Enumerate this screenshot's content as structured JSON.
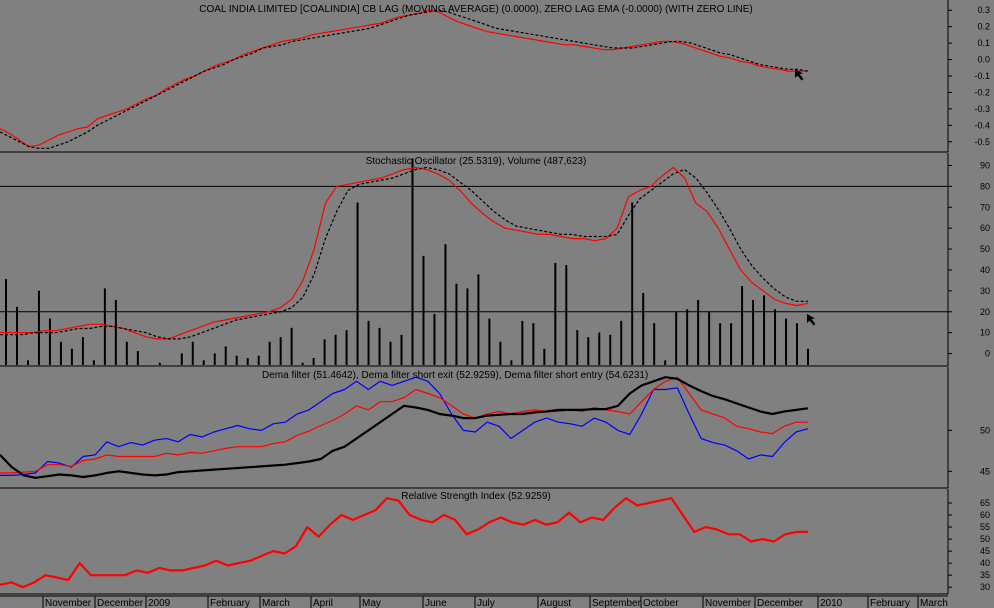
{
  "colors": {
    "background": "#808080",
    "red": "#ff0000",
    "blue": "#0000ff",
    "black": "#000000"
  },
  "xaxis": {
    "labels": [
      "November",
      "December",
      "2009",
      "February",
      "March",
      "April",
      "May",
      "June",
      "July",
      "August",
      "September",
      "October",
      "November",
      "December",
      "2010",
      "February",
      "March"
    ]
  },
  "chart_data": [
    {
      "type": "line",
      "title": "COAL INDIA LIMITED [COALINDIA] CB LAG (MOVING AVERAGE) (0.0000), ZERO LAG EMA (-0.0000) (WITH ZERO LINE)",
      "ylim": [
        -0.55,
        0.35
      ],
      "yticks": [
        "0.3",
        "0.2",
        "0.1",
        "0.0",
        "-0.1",
        "-0.2",
        "-0.3",
        "-0.4",
        "-0.5"
      ],
      "series": [
        {
          "color": "#ff0000",
          "values": [
            -0.42,
            -0.45,
            -0.49,
            -0.53,
            -0.52,
            -0.49,
            -0.46,
            -0.44,
            -0.42,
            -0.41,
            -0.36,
            -0.34,
            -0.32,
            -0.3,
            -0.27,
            -0.24,
            -0.22,
            -0.18,
            -0.15,
            -0.12,
            -0.1,
            -0.07,
            -0.04,
            -0.02,
            0.0,
            0.03,
            0.05,
            0.07,
            0.09,
            0.11,
            0.12,
            0.13,
            0.15,
            0.16,
            0.17,
            0.18,
            0.19,
            0.2,
            0.21,
            0.22,
            0.24,
            0.26,
            0.27,
            0.28,
            0.3,
            0.29,
            0.26,
            0.23,
            0.21,
            0.19,
            0.17,
            0.16,
            0.15,
            0.14,
            0.13,
            0.12,
            0.11,
            0.1,
            0.09,
            0.09,
            0.08,
            0.07,
            0.06,
            0.06,
            0.07,
            0.08,
            0.09,
            0.1,
            0.11,
            0.11,
            0.1,
            0.08,
            0.06,
            0.04,
            0.02,
            0.01,
            -0.01,
            -0.02,
            -0.04,
            -0.05,
            -0.06,
            -0.07,
            -0.07,
            -0.07
          ]
        },
        {
          "color": "#000000",
          "dash": true,
          "values": [
            -0.44,
            -0.47,
            -0.5,
            -0.53,
            -0.54,
            -0.54,
            -0.52,
            -0.5,
            -0.47,
            -0.44,
            -0.4,
            -0.37,
            -0.34,
            -0.31,
            -0.28,
            -0.25,
            -0.22,
            -0.19,
            -0.16,
            -0.13,
            -0.1,
            -0.07,
            -0.05,
            -0.03,
            0.0,
            0.02,
            0.04,
            0.07,
            0.08,
            0.09,
            0.11,
            0.12,
            0.13,
            0.14,
            0.15,
            0.16,
            0.17,
            0.18,
            0.19,
            0.21,
            0.23,
            0.25,
            0.27,
            0.28,
            0.29,
            0.3,
            0.29,
            0.27,
            0.25,
            0.23,
            0.21,
            0.19,
            0.18,
            0.17,
            0.16,
            0.15,
            0.14,
            0.13,
            0.12,
            0.11,
            0.1,
            0.09,
            0.08,
            0.07,
            0.07,
            0.07,
            0.08,
            0.09,
            0.1,
            0.11,
            0.11,
            0.1,
            0.08,
            0.06,
            0.04,
            0.03,
            0.01,
            -0.01,
            -0.03,
            -0.04,
            -0.05,
            -0.06,
            -0.06,
            -0.07
          ]
        }
      ]
    },
    {
      "type": "line",
      "title": "Stochastic Oscillator (25.5319), Volume (487,623)",
      "ylim": [
        -5,
        95
      ],
      "yticks": [
        "90",
        "80",
        "70",
        "60",
        "50",
        "40",
        "30",
        "20",
        "10",
        "0"
      ],
      "hlines": [
        80,
        20
      ],
      "series": [
        {
          "color": "#ff0000",
          "values": [
            10,
            10,
            10,
            10,
            11,
            11,
            12,
            13,
            14,
            14,
            13,
            12,
            10,
            8,
            7,
            7,
            9,
            11,
            13,
            15,
            16,
            17,
            18,
            19,
            20,
            22,
            26,
            35,
            50,
            72,
            80,
            81,
            82,
            83,
            84,
            86,
            88,
            89,
            88,
            86,
            83,
            78,
            72,
            67,
            63,
            60,
            59,
            58,
            57,
            57,
            56,
            55,
            55,
            54,
            55,
            60,
            75,
            78,
            80,
            85,
            89,
            84,
            72,
            68,
            60,
            50,
            40,
            34,
            30,
            26,
            24,
            23,
            24
          ]
        },
        {
          "color": "#000000",
          "dash": true,
          "values": [
            9,
            9,
            9,
            10,
            10,
            10,
            11,
            12,
            12,
            13,
            13,
            12,
            11,
            10,
            8,
            7,
            7,
            8,
            10,
            12,
            14,
            16,
            17,
            18,
            19,
            20,
            22,
            27,
            38,
            55,
            68,
            78,
            81,
            82,
            83,
            84,
            86,
            88,
            89,
            88,
            86,
            82,
            78,
            73,
            68,
            64,
            61,
            60,
            59,
            58,
            57,
            57,
            56,
            56,
            56,
            57,
            66,
            74,
            78,
            82,
            86,
            88,
            84,
            77,
            69,
            60,
            50,
            42,
            36,
            31,
            27,
            25,
            25
          ]
        }
      ],
      "volume": {
        "color": "#000000",
        "values": [
          37,
          25,
          2,
          32,
          20,
          10,
          7,
          12,
          2,
          33,
          28,
          10,
          6,
          0,
          1,
          0,
          5,
          10,
          2,
          5,
          8,
          4,
          3,
          4,
          10,
          12,
          16,
          1,
          3,
          11,
          13,
          15,
          70,
          19,
          16,
          10,
          13,
          89,
          47,
          22,
          52,
          35,
          33,
          39,
          20,
          10,
          2,
          19,
          18,
          7,
          44,
          43,
          15,
          12,
          14,
          13,
          19,
          70,
          31,
          18,
          2,
          23,
          24,
          28,
          23,
          18,
          18,
          34,
          28,
          30,
          24,
          20,
          18,
          7
        ],
        "max": 90
      }
    },
    {
      "type": "line",
      "title": "Dema filter (51.4642), Dema filter short exit (52.9259), Dema filter short entry (54.6231)",
      "ylim": [
        43.2,
        57.5
      ],
      "yticks": [
        "50",
        "45"
      ],
      "series": [
        {
          "color": "#0000ff",
          "values": [
            44.5,
            44.5,
            44.6,
            44.8,
            46.2,
            46.0,
            45.5,
            46.8,
            47.0,
            48.6,
            48.0,
            48.5,
            48.2,
            48.8,
            49.0,
            48.6,
            49.5,
            49.2,
            49.8,
            50.2,
            50.6,
            50.2,
            50.0,
            50.8,
            51.0,
            52.0,
            52.5,
            53.5,
            54.5,
            55.0,
            56.0,
            55.0,
            56.0,
            55.5,
            56.0,
            56.5,
            56.0,
            54.5,
            52.0,
            50.0,
            49.8,
            51.0,
            50.5,
            49.0,
            50.0,
            51.0,
            51.5,
            51.0,
            50.8,
            50.5,
            51.5,
            51.0,
            50.0,
            49.5,
            52.0,
            55.0,
            55.0,
            55.2,
            52.0,
            49.0,
            48.5,
            48.2,
            47.5,
            46.5,
            47.0,
            46.8,
            48.5,
            49.8,
            50.2
          ]
        },
        {
          "color": "#ff0000",
          "values": [
            44.8,
            44.8,
            44.9,
            45.0,
            45.8,
            45.8,
            45.6,
            46.3,
            46.5,
            47.0,
            46.8,
            46.8,
            46.8,
            46.8,
            47.2,
            47.0,
            47.3,
            47.2,
            47.5,
            47.8,
            48.0,
            48.0,
            48.0,
            48.4,
            48.6,
            49.4,
            49.9,
            50.6,
            51.2,
            52.0,
            53.0,
            52.5,
            53.5,
            53.5,
            54.0,
            55.0,
            54.5,
            54.0,
            53.0,
            52.0,
            51.5,
            52.0,
            52.3,
            52.0,
            52.3,
            52.5,
            52.3,
            52.3,
            52.5,
            52.3,
            52.8,
            52.5,
            52.3,
            52.0,
            53.5,
            55.0,
            56.0,
            56.5,
            54.5,
            52.5,
            52.0,
            51.5,
            50.5,
            50.2,
            49.8,
            49.6,
            50.5,
            51.0,
            51.0
          ]
        },
        {
          "color": "#000000",
          "thick": true,
          "values": [
            47.0,
            45.5,
            44.5,
            44.2,
            44.4,
            44.6,
            44.5,
            44.3,
            44.5,
            44.8,
            45.0,
            44.8,
            44.6,
            44.5,
            44.6,
            44.9,
            45.0,
            45.1,
            45.2,
            45.3,
            45.4,
            45.5,
            45.6,
            45.7,
            45.8,
            46.0,
            46.2,
            46.5,
            47.5,
            48.0,
            49.0,
            50.0,
            51.0,
            52.0,
            53.0,
            52.8,
            52.5,
            52.0,
            51.8,
            51.5,
            51.5,
            51.8,
            51.9,
            52.0,
            52.0,
            52.2,
            52.3,
            52.5,
            52.5,
            52.5,
            52.6,
            52.6,
            53.0,
            54.5,
            55.5,
            56.0,
            56.5,
            56.3,
            55.5,
            54.8,
            54.2,
            53.8,
            53.3,
            52.8,
            52.3,
            52.0,
            52.3,
            52.5,
            52.7
          ]
        }
      ]
    },
    {
      "type": "line",
      "title": "Relative Strength Index (52.9259)",
      "ylim": [
        28,
        70
      ],
      "yticks": [
        "65",
        "60",
        "55",
        "50",
        "45",
        "40",
        "35",
        "30"
      ],
      "series": [
        {
          "color": "#ff0000",
          "thick": true,
          "values": [
            31,
            32,
            30,
            32,
            35,
            34,
            33,
            40,
            35,
            35,
            35,
            35,
            37,
            36,
            38,
            37,
            37,
            38,
            39,
            41,
            39,
            40,
            41,
            43,
            45,
            44,
            47,
            55,
            51,
            56,
            60,
            58,
            60,
            62,
            67,
            66,
            60,
            58,
            57,
            60,
            58,
            52,
            54,
            57,
            59,
            57,
            56,
            58,
            56,
            57,
            61,
            57,
            59,
            58,
            63,
            67,
            64,
            65,
            66,
            67,
            60,
            53,
            55,
            54,
            52,
            52,
            49,
            50,
            49,
            52,
            53,
            53
          ]
        }
      ]
    }
  ]
}
